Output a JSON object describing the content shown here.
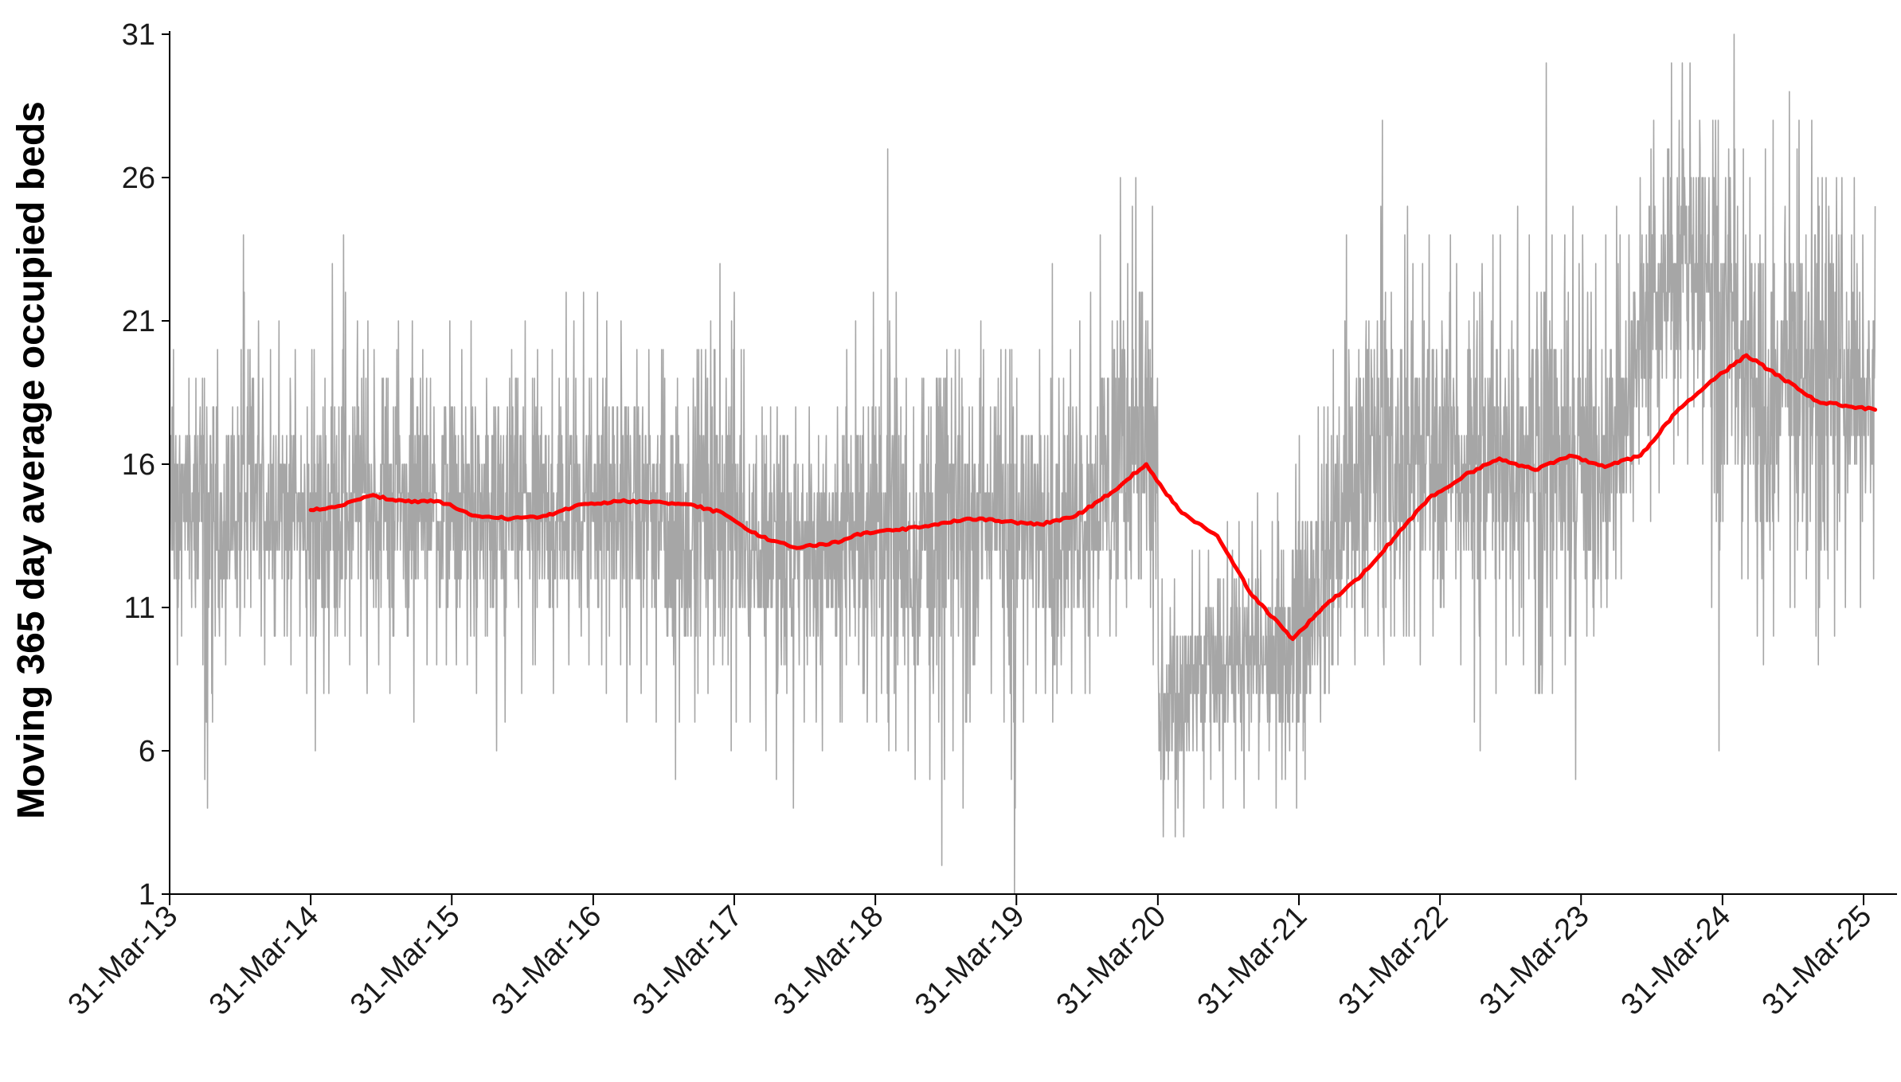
{
  "chart_data": {
    "type": "line",
    "title": "",
    "xlabel": "",
    "ylabel": "Moving 365 day average occupied beds",
    "x_axis_type": "date",
    "xlim": [
      "2013-03-31",
      "2025-04-30"
    ],
    "ylim": [
      1,
      31
    ],
    "y_ticks": [
      1,
      6,
      11,
      16,
      21,
      26,
      31
    ],
    "x_ticks": [
      {
        "date": "2013-03-31",
        "label": "31-Mar-13"
      },
      {
        "date": "2014-03-31",
        "label": "31-Mar-14"
      },
      {
        "date": "2015-03-31",
        "label": "31-Mar-15"
      },
      {
        "date": "2016-03-31",
        "label": "31-Mar-16"
      },
      {
        "date": "2017-03-31",
        "label": "31-Mar-17"
      },
      {
        "date": "2018-03-31",
        "label": "31-Mar-18"
      },
      {
        "date": "2019-03-31",
        "label": "31-Mar-19"
      },
      {
        "date": "2020-03-31",
        "label": "31-Mar-20"
      },
      {
        "date": "2021-03-31",
        "label": "31-Mar-21"
      },
      {
        "date": "2022-03-31",
        "label": "31-Mar-22"
      },
      {
        "date": "2023-03-31",
        "label": "31-Mar-23"
      },
      {
        "date": "2024-03-31",
        "label": "31-Mar-24"
      },
      {
        "date": "2025-03-31",
        "label": "31-Mar-25"
      }
    ],
    "grid": false,
    "legend": "none",
    "colors": {
      "daily": "#a6a6a6",
      "moving_average": "#ff0000",
      "axis": "#000000"
    },
    "series": [
      {
        "role": "daily",
        "values_by_month": [
          [
            "2013-04",
            14.5,
            9,
            20
          ],
          [
            "2013-05",
            14.5,
            10,
            19
          ],
          [
            "2013-06",
            14,
            5,
            19
          ],
          [
            "2013-07",
            13.5,
            4,
            18
          ],
          [
            "2013-08",
            14,
            9,
            20
          ],
          [
            "2013-09",
            14.5,
            10,
            21
          ],
          [
            "2013-10",
            15,
            11,
            24
          ],
          [
            "2013-11",
            15,
            10,
            21
          ],
          [
            "2013-12",
            14.5,
            9,
            20
          ],
          [
            "2014-01",
            15,
            10,
            21
          ],
          [
            "2014-02",
            14.5,
            9,
            20
          ],
          [
            "2014-03",
            14,
            8,
            21
          ],
          [
            "2014-04",
            14,
            6,
            20
          ],
          [
            "2014-05",
            14.5,
            8,
            23
          ],
          [
            "2014-06",
            15,
            10,
            24
          ],
          [
            "2014-07",
            15,
            9,
            21
          ],
          [
            "2014-08",
            15,
            8,
            21
          ],
          [
            "2014-09",
            14.5,
            9,
            20
          ],
          [
            "2014-10",
            15,
            8,
            19
          ],
          [
            "2014-11",
            15,
            10,
            21
          ],
          [
            "2014-12",
            14.5,
            7,
            21
          ],
          [
            "2015-01",
            15,
            9,
            20
          ],
          [
            "2015-02",
            14.5,
            9,
            19
          ],
          [
            "2015-03",
            14.5,
            9,
            21
          ],
          [
            "2015-04",
            14,
            9,
            20
          ],
          [
            "2015-05",
            14.5,
            9,
            21
          ],
          [
            "2015-06",
            14,
            8,
            19
          ],
          [
            "2015-07",
            13.5,
            6,
            18
          ],
          [
            "2015-08",
            14,
            7,
            19
          ],
          [
            "2015-09",
            14.5,
            8,
            20
          ],
          [
            "2015-10",
            14.5,
            9,
            21
          ],
          [
            "2015-11",
            14,
            9,
            20
          ],
          [
            "2015-12",
            14,
            8,
            20
          ],
          [
            "2016-01",
            14.5,
            9,
            22
          ],
          [
            "2016-02",
            14.5,
            10,
            21
          ],
          [
            "2016-03",
            15,
            9,
            22
          ],
          [
            "2016-04",
            15,
            9,
            22
          ],
          [
            "2016-05",
            14.5,
            8,
            21
          ],
          [
            "2016-06",
            14.5,
            7,
            21
          ],
          [
            "2016-07",
            14.5,
            9,
            20
          ],
          [
            "2016-08",
            14.5,
            8,
            20
          ],
          [
            "2016-09",
            14,
            7,
            20
          ],
          [
            "2016-10",
            13.5,
            5,
            19
          ],
          [
            "2016-11",
            14,
            7,
            19
          ],
          [
            "2016-12",
            14.5,
            7,
            20
          ],
          [
            "2017-01",
            15,
            8,
            21
          ],
          [
            "2017-02",
            15,
            9,
            23
          ],
          [
            "2017-03",
            14.5,
            6,
            22
          ],
          [
            "2017-04",
            14,
            7,
            20
          ],
          [
            "2017-05",
            13.5,
            7,
            19
          ],
          [
            "2017-06",
            13,
            6,
            18
          ],
          [
            "2017-07",
            13,
            5,
            18
          ],
          [
            "2017-08",
            12.5,
            4,
            17
          ],
          [
            "2017-09",
            13,
            7,
            18
          ],
          [
            "2017-10",
            13,
            7,
            18
          ],
          [
            "2017-11",
            12.5,
            6,
            17
          ],
          [
            "2017-12",
            13,
            7,
            18
          ],
          [
            "2018-01",
            14,
            7,
            20
          ],
          [
            "2018-02",
            14,
            8,
            21
          ],
          [
            "2018-03",
            13.5,
            7,
            22
          ],
          [
            "2018-04",
            13.5,
            7,
            20
          ],
          [
            "2018-05",
            14,
            6,
            27
          ],
          [
            "2018-06",
            13.5,
            6,
            19
          ],
          [
            "2018-07",
            13,
            5,
            19
          ],
          [
            "2018-08",
            13.5,
            5,
            19
          ],
          [
            "2018-09",
            13.5,
            2,
            19
          ],
          [
            "2018-10",
            14,
            6,
            20
          ],
          [
            "2018-11",
            14,
            4,
            20
          ],
          [
            "2018-12",
            14,
            7,
            21
          ],
          [
            "2019-01",
            14.5,
            8,
            20
          ],
          [
            "2019-02",
            14,
            7,
            20
          ],
          [
            "2019-03",
            13.5,
            1,
            20
          ],
          [
            "2019-04",
            14,
            7,
            19
          ],
          [
            "2019-05",
            14,
            8,
            20
          ],
          [
            "2019-06",
            14,
            8,
            19
          ],
          [
            "2019-07",
            14,
            7,
            23
          ],
          [
            "2019-08",
            14,
            8,
            20
          ],
          [
            "2019-09",
            14.5,
            8,
            21
          ],
          [
            "2019-10",
            15,
            8,
            22
          ],
          [
            "2019-11",
            15.5,
            10,
            24
          ],
          [
            "2019-12",
            16.5,
            10,
            26
          ],
          [
            "2020-01",
            17,
            11,
            25
          ],
          [
            "2020-02",
            17.5,
            12,
            26
          ],
          [
            "2020-03",
            16,
            9,
            25
          ],
          [
            "2020-04",
            7,
            3,
            12
          ],
          [
            "2020-05",
            7.5,
            3,
            12
          ],
          [
            "2020-06",
            8,
            3,
            13
          ],
          [
            "2020-07",
            8.5,
            4,
            13
          ],
          [
            "2020-08",
            9,
            5,
            13
          ],
          [
            "2020-09",
            9,
            4,
            14
          ],
          [
            "2020-10",
            9.5,
            5,
            14
          ],
          [
            "2020-11",
            9,
            4,
            14
          ],
          [
            "2020-12",
            9.5,
            5,
            15
          ],
          [
            "2021-01",
            9,
            4,
            14
          ],
          [
            "2021-02",
            9.5,
            5,
            15
          ],
          [
            "2021-03",
            10,
            4,
            16
          ],
          [
            "2021-04",
            11,
            5,
            17
          ],
          [
            "2021-05",
            12,
            7,
            18
          ],
          [
            "2021-06",
            13,
            8,
            20
          ],
          [
            "2021-07",
            14,
            9,
            21
          ],
          [
            "2021-08",
            15,
            9,
            24
          ],
          [
            "2021-09",
            16,
            10,
            25
          ],
          [
            "2021-10",
            16.5,
            10,
            25
          ],
          [
            "2021-11",
            16,
            9,
            28
          ],
          [
            "2021-12",
            16,
            10,
            24
          ],
          [
            "2022-01",
            16.5,
            10,
            25
          ],
          [
            "2022-02",
            16,
            9,
            23
          ],
          [
            "2022-03",
            16.5,
            10,
            24
          ],
          [
            "2022-04",
            16.5,
            11,
            24
          ],
          [
            "2022-05",
            16.5,
            9,
            23
          ],
          [
            "2022-06",
            16,
            7,
            22
          ],
          [
            "2022-07",
            16,
            6,
            23
          ],
          [
            "2022-08",
            16,
            8,
            24
          ],
          [
            "2022-09",
            16.5,
            9,
            24
          ],
          [
            "2022-10",
            16.5,
            10,
            25
          ],
          [
            "2022-11",
            16.5,
            9,
            24
          ],
          [
            "2022-12",
            16.5,
            8,
            30
          ],
          [
            "2023-01",
            16,
            8,
            24
          ],
          [
            "2023-02",
            16,
            9,
            24
          ],
          [
            "2023-03",
            16,
            5,
            25
          ],
          [
            "2023-04",
            16,
            10,
            24
          ],
          [
            "2023-05",
            16,
            10,
            23
          ],
          [
            "2023-06",
            16.5,
            11,
            24
          ],
          [
            "2023-07",
            17.5,
            12,
            25
          ],
          [
            "2023-08",
            19.5,
            14,
            26
          ],
          [
            "2023-09",
            21,
            14,
            27
          ],
          [
            "2023-10",
            22,
            15,
            28
          ],
          [
            "2023-11",
            23,
            16,
            30
          ],
          [
            "2023-12",
            23.5,
            17,
            30
          ],
          [
            "2024-01",
            23,
            16,
            30
          ],
          [
            "2024-02",
            22.5,
            16,
            28
          ],
          [
            "2024-03",
            21.5,
            6,
            28
          ],
          [
            "2024-04",
            21,
            14,
            31
          ],
          [
            "2024-05",
            20,
            12,
            27
          ],
          [
            "2024-06",
            18.5,
            10,
            26
          ],
          [
            "2024-07",
            17.5,
            9,
            27
          ],
          [
            "2024-08",
            18.5,
            10,
            28
          ],
          [
            "2024-09",
            19.5,
            11,
            29
          ],
          [
            "2024-10",
            19.5,
            11,
            28
          ],
          [
            "2024-11",
            19,
            10,
            28
          ],
          [
            "2024-12",
            19,
            9,
            26
          ],
          [
            "2025-01",
            19.5,
            10,
            26
          ],
          [
            "2025-02",
            19,
            11,
            26
          ],
          [
            "2025-03",
            18.5,
            11,
            26
          ],
          [
            "2025-04",
            18.5,
            12,
            25
          ]
        ]
      },
      {
        "role": "moving_average",
        "points": [
          [
            "2014-03-31",
            14.4
          ],
          [
            "2014-06-01",
            14.5
          ],
          [
            "2014-09-01",
            14.9
          ],
          [
            "2014-12-01",
            14.7
          ],
          [
            "2015-03-01",
            14.7
          ],
          [
            "2015-06-01",
            14.2
          ],
          [
            "2015-09-01",
            14.1
          ],
          [
            "2015-12-01",
            14.2
          ],
          [
            "2016-03-01",
            14.6
          ],
          [
            "2016-06-01",
            14.7
          ],
          [
            "2016-09-01",
            14.7
          ],
          [
            "2016-12-01",
            14.6
          ],
          [
            "2017-03-01",
            14.3
          ],
          [
            "2017-06-01",
            13.5
          ],
          [
            "2017-09-01",
            13.1
          ],
          [
            "2017-12-01",
            13.2
          ],
          [
            "2018-03-01",
            13.6
          ],
          [
            "2018-06-01",
            13.7
          ],
          [
            "2018-09-01",
            13.9
          ],
          [
            "2018-12-01",
            14.1
          ],
          [
            "2019-03-01",
            14
          ],
          [
            "2019-06-01",
            13.9
          ],
          [
            "2019-09-01",
            14.2
          ],
          [
            "2019-12-01",
            15
          ],
          [
            "2020-03-01",
            16
          ],
          [
            "2020-04-15",
            15.1
          ],
          [
            "2020-06-01",
            14.3
          ],
          [
            "2020-09-01",
            13.5
          ],
          [
            "2020-12-01",
            11.4
          ],
          [
            "2021-03-15",
            9.9
          ],
          [
            "2021-06-01",
            11
          ],
          [
            "2021-09-01",
            12
          ],
          [
            "2021-12-01",
            13.4
          ],
          [
            "2022-03-01",
            14.8
          ],
          [
            "2022-06-01",
            15.6
          ],
          [
            "2022-09-01",
            16.2
          ],
          [
            "2022-12-01",
            15.8
          ],
          [
            "2023-03-01",
            16.3
          ],
          [
            "2023-06-01",
            15.9
          ],
          [
            "2023-09-01",
            16.3
          ],
          [
            "2023-12-01",
            17.8
          ],
          [
            "2024-03-01",
            18.9
          ],
          [
            "2024-06-01",
            19.8
          ],
          [
            "2024-09-01",
            19
          ],
          [
            "2024-12-01",
            18.2
          ],
          [
            "2025-03-01",
            18
          ],
          [
            "2025-04-30",
            17.9
          ]
        ]
      }
    ]
  }
}
